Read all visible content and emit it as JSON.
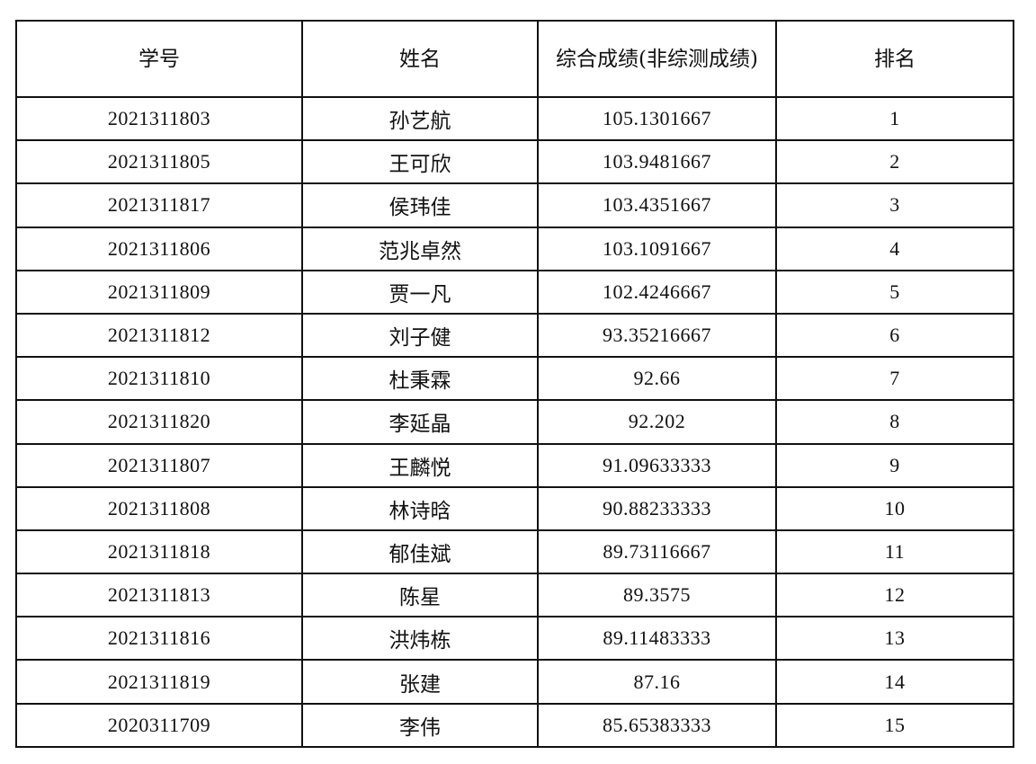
{
  "table": {
    "headers": [
      "学号",
      "姓名",
      "综合成绩(非综测成绩)",
      "排名"
    ],
    "rows": [
      {
        "id": "2021311803",
        "name": "孙艺航",
        "score": "105.1301667",
        "rank": "1"
      },
      {
        "id": "2021311805",
        "name": "王可欣",
        "score": "103.9481667",
        "rank": "2"
      },
      {
        "id": "2021311817",
        "name": "侯玮佳",
        "score": "103.4351667",
        "rank": "3"
      },
      {
        "id": "2021311806",
        "name": "范兆卓然",
        "score": "103.1091667",
        "rank": "4"
      },
      {
        "id": "2021311809",
        "name": "贾一凡",
        "score": "102.4246667",
        "rank": "5"
      },
      {
        "id": "2021311812",
        "name": "刘子健",
        "score": "93.35216667",
        "rank": "6"
      },
      {
        "id": "2021311810",
        "name": "杜秉霖",
        "score": "92.66",
        "rank": "7"
      },
      {
        "id": "2021311820",
        "name": "李延晶",
        "score": "92.202",
        "rank": "8"
      },
      {
        "id": "2021311807",
        "name": "王麟悦",
        "score": "91.09633333",
        "rank": "9"
      },
      {
        "id": "2021311808",
        "name": "林诗晗",
        "score": "90.88233333",
        "rank": "10"
      },
      {
        "id": "2021311818",
        "name": "郁佳斌",
        "score": "89.73116667",
        "rank": "11"
      },
      {
        "id": "2021311813",
        "name": "陈星",
        "score": "89.3575",
        "rank": "12"
      },
      {
        "id": "2021311816",
        "name": "洪炜栋",
        "score": "89.11483333",
        "rank": "13"
      },
      {
        "id": "2021311819",
        "name": "张建",
        "score": "87.16",
        "rank": "14"
      },
      {
        "id": "2020311709",
        "name": "李伟",
        "score": "85.65383333",
        "rank": "15"
      }
    ]
  }
}
